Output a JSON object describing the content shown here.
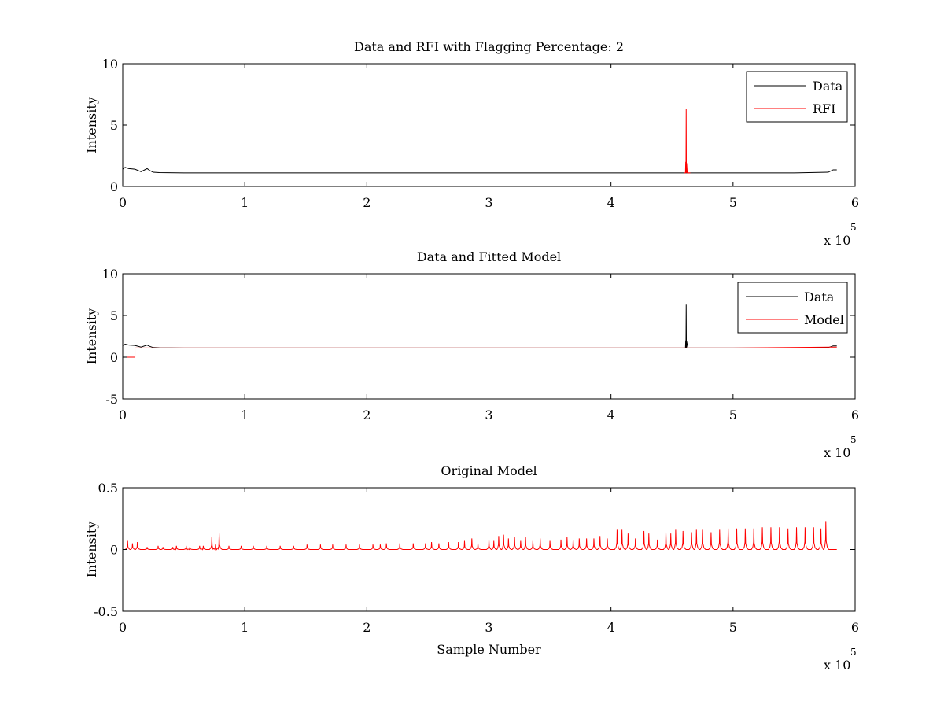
{
  "chart_data": [
    {
      "type": "line",
      "title": "Data and RFI with Flagging Percentage: 2",
      "xlabel": "",
      "ylabel": "Intensity",
      "xlim": [
        0,
        6
      ],
      "ylim": [
        0,
        10
      ],
      "xticks": [
        0,
        1,
        2,
        3,
        4,
        5,
        6
      ],
      "yticks": [
        0,
        5,
        10
      ],
      "x_exponent": "x 10",
      "x_exponent_power": "5",
      "legend": "top-right",
      "grid": false,
      "series": [
        {
          "name": "Data",
          "color": "#000000",
          "x": [
            0.0,
            0.02,
            0.05,
            0.1,
            0.15,
            0.2,
            0.22,
            0.25,
            0.3,
            0.5,
            1.0,
            1.5,
            2.0,
            2.5,
            3.0,
            3.5,
            4.0,
            4.5,
            4.6,
            4.7,
            5.0,
            5.5,
            5.78,
            5.82,
            5.85
          ],
          "y": [
            1.4,
            1.55,
            1.45,
            1.4,
            1.2,
            1.45,
            1.3,
            1.15,
            1.12,
            1.1,
            1.1,
            1.1,
            1.1,
            1.1,
            1.1,
            1.1,
            1.1,
            1.1,
            1.1,
            1.1,
            1.1,
            1.1,
            1.15,
            1.35,
            1.35
          ]
        },
        {
          "name": "RFI",
          "color": "#ff0000",
          "x": [
            4.6,
            4.61,
            4.612,
            4.614,
            4.616,
            4.618,
            4.62,
            4.625,
            4.63,
            4.65
          ],
          "y": [
            1.1,
            1.1,
            2.0,
            1.1,
            6.3,
            1.1,
            1.9,
            1.1,
            1.1,
            1.1
          ]
        }
      ]
    },
    {
      "type": "line",
      "title": "Data and Fitted Model",
      "xlabel": "",
      "ylabel": "Intensity",
      "xlim": [
        0,
        6
      ],
      "ylim": [
        -5,
        10
      ],
      "xticks": [
        0,
        1,
        2,
        3,
        4,
        5,
        6
      ],
      "yticks": [
        -5,
        0,
        5,
        10
      ],
      "x_exponent": "x 10",
      "x_exponent_power": "5",
      "legend": "top-right",
      "grid": false,
      "series": [
        {
          "name": "Data",
          "color": "#000000",
          "x": [
            0.0,
            0.02,
            0.05,
            0.1,
            0.15,
            0.2,
            0.22,
            0.25,
            0.3,
            0.5,
            1.0,
            2.0,
            3.0,
            4.0,
            4.6,
            4.61,
            4.612,
            4.614,
            4.616,
            4.618,
            4.62,
            4.63,
            5.0,
            5.5,
            5.78,
            5.82,
            5.85
          ],
          "y": [
            1.4,
            1.55,
            1.45,
            1.4,
            1.2,
            1.45,
            1.3,
            1.15,
            1.12,
            1.1,
            1.1,
            1.1,
            1.1,
            1.1,
            1.1,
            1.1,
            2.0,
            1.1,
            6.3,
            1.1,
            1.9,
            1.1,
            1.1,
            1.1,
            1.15,
            1.35,
            1.35
          ]
        },
        {
          "name": "Model",
          "color": "#ff0000",
          "x": [
            0.0,
            0.1,
            0.1,
            0.15,
            1.0,
            2.0,
            3.0,
            4.0,
            5.0,
            5.8,
            5.85
          ],
          "y": [
            0.0,
            0.0,
            1.1,
            1.1,
            1.1,
            1.1,
            1.1,
            1.1,
            1.1,
            1.2,
            1.2
          ]
        }
      ]
    },
    {
      "type": "line",
      "title": "Original Model",
      "xlabel": "Sample Number",
      "ylabel": "Intensity",
      "xlim": [
        0,
        6
      ],
      "ylim": [
        -0.5,
        0.5
      ],
      "xticks": [
        0,
        1,
        2,
        3,
        4,
        5,
        6
      ],
      "yticks": [
        -0.5,
        0,
        0.5
      ],
      "x_exponent": "x 10",
      "x_exponent_power": "5",
      "legend": "none",
      "grid": false,
      "baseline": 0,
      "x_end": 5.85,
      "series": [
        {
          "color": "#ff0000",
          "peaks_x": [
            0.04,
            0.08,
            0.12,
            0.2,
            0.29,
            0.33,
            0.41,
            0.44,
            0.52,
            0.55,
            0.63,
            0.66,
            0.73,
            0.76,
            0.79,
            0.87,
            0.97,
            1.07,
            1.18,
            1.29,
            1.4,
            1.51,
            1.62,
            1.72,
            1.83,
            1.94,
            2.05,
            2.11,
            2.16,
            2.27,
            2.38,
            2.48,
            2.53,
            2.59,
            2.67,
            2.75,
            2.8,
            2.86,
            2.91,
            3.0,
            3.04,
            3.08,
            3.12,
            3.16,
            3.21,
            3.26,
            3.3,
            3.36,
            3.42,
            3.5,
            3.59,
            3.64,
            3.69,
            3.74,
            3.8,
            3.86,
            3.91,
            3.97,
            4.05,
            4.09,
            4.14,
            4.2,
            4.27,
            4.31,
            4.38,
            4.45,
            4.49,
            4.53,
            4.59,
            4.66,
            4.7,
            4.75,
            4.82,
            4.89,
            4.96,
            5.03,
            5.1,
            5.17,
            5.24,
            5.31,
            5.38,
            5.45,
            5.52,
            5.59,
            5.66,
            5.72,
            5.76
          ],
          "peaks_y": [
            0.07,
            0.05,
            0.06,
            0.02,
            0.03,
            0.02,
            0.02,
            0.03,
            0.03,
            0.02,
            0.03,
            0.03,
            0.1,
            0.04,
            0.13,
            0.03,
            0.03,
            0.03,
            0.03,
            0.03,
            0.03,
            0.04,
            0.04,
            0.04,
            0.04,
            0.04,
            0.04,
            0.04,
            0.05,
            0.05,
            0.05,
            0.05,
            0.06,
            0.05,
            0.06,
            0.06,
            0.07,
            0.09,
            0.05,
            0.08,
            0.07,
            0.11,
            0.12,
            0.09,
            0.1,
            0.07,
            0.1,
            0.07,
            0.09,
            0.07,
            0.08,
            0.1,
            0.08,
            0.09,
            0.09,
            0.09,
            0.11,
            0.09,
            0.16,
            0.16,
            0.13,
            0.09,
            0.15,
            0.13,
            0.08,
            0.14,
            0.13,
            0.16,
            0.15,
            0.14,
            0.16,
            0.16,
            0.14,
            0.16,
            0.17,
            0.17,
            0.17,
            0.17,
            0.18,
            0.18,
            0.18,
            0.17,
            0.18,
            0.18,
            0.18,
            0.17,
            0.23
          ]
        }
      ]
    }
  ]
}
